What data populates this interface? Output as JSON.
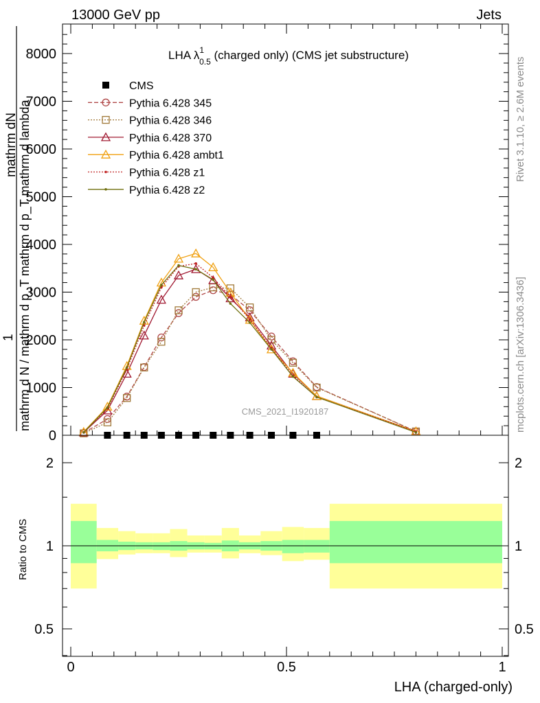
{
  "header": {
    "left": "13000 GeV pp",
    "right": "Jets"
  },
  "side_labels": {
    "rivet": "Rivet 3.1.10, ≥ 2.6M events",
    "mcplots": "mcplots.cern.ch [arXiv:1306.3436]"
  },
  "watermark": "CMS_2021_I1920187",
  "chart_data": [
    {
      "type": "line",
      "title": "LHA λ",
      "title_sup": "1",
      "title_sub": "0.5",
      "title_rest": " (charged only) (CMS jet substructure)",
      "ylabel_top": "mathrm dN",
      "ylabel_numer": "1",
      "ylabel_denom": "mathrm d N / mathrm d p_T mathrm d p_T mathrm d lambda",
      "ylim": [
        0,
        8600
      ],
      "yticks": [
        0,
        1000,
        2000,
        3000,
        4000,
        5000,
        6000,
        7000,
        8000
      ],
      "ytick_labels": [
        "0",
        "1000",
        "2000",
        "3000",
        "4000",
        "5000",
        "6000",
        "7000",
        "8000"
      ],
      "xlim": [
        -0.02,
        1.0
      ],
      "legend_position": "top-left",
      "series": [
        {
          "name": "CMS",
          "color": "#000000",
          "marker": "square",
          "line": "none",
          "x": [
            0.085,
            0.13,
            0.17,
            0.21,
            0.25,
            0.29,
            0.33,
            0.37,
            0.415,
            0.465,
            0.515,
            0.57
          ],
          "y": [
            0,
            0,
            0,
            0,
            0,
            0,
            0,
            0,
            0,
            0,
            0,
            0
          ]
        },
        {
          "name": "Pythia 6.428 345",
          "color": "#b04848",
          "marker": "circle",
          "line": "dashed",
          "x": [
            0.03,
            0.085,
            0.13,
            0.17,
            0.21,
            0.25,
            0.29,
            0.33,
            0.37,
            0.415,
            0.465,
            0.515,
            0.57,
            0.8
          ],
          "y": [
            50,
            340,
            810,
            1430,
            2050,
            2560,
            2900,
            3040,
            2950,
            2620,
            2070,
            1550,
            1010,
            80
          ]
        },
        {
          "name": "Pythia 6.428 346",
          "color": "#a07838",
          "marker": "square-open",
          "line": "dotted",
          "x": [
            0.03,
            0.085,
            0.13,
            0.17,
            0.21,
            0.25,
            0.29,
            0.33,
            0.37,
            0.415,
            0.465,
            0.515,
            0.57,
            0.8
          ],
          "y": [
            40,
            270,
            780,
            1420,
            1960,
            2620,
            3000,
            3100,
            3080,
            2680,
            2000,
            1520,
            1000,
            80
          ]
        },
        {
          "name": "Pythia 6.428 370",
          "color": "#a01830",
          "marker": "triangle-open",
          "line": "solid",
          "x": [
            0.03,
            0.085,
            0.13,
            0.17,
            0.21,
            0.25,
            0.29,
            0.33,
            0.37,
            0.415,
            0.465,
            0.515,
            0.57,
            0.8
          ],
          "y": [
            60,
            520,
            1290,
            2090,
            2840,
            3350,
            3480,
            3250,
            2870,
            2470,
            1880,
            1290,
            820,
            80
          ]
        },
        {
          "name": "Pythia 6.428 ambt1",
          "color": "#f0a010",
          "marker": "triangle-open",
          "line": "solid",
          "x": [
            0.03,
            0.085,
            0.13,
            0.17,
            0.21,
            0.25,
            0.29,
            0.33,
            0.37,
            0.415,
            0.465,
            0.515,
            0.57,
            0.8
          ],
          "y": [
            70,
            600,
            1450,
            2400,
            3200,
            3700,
            3810,
            3520,
            2990,
            2420,
            1800,
            1310,
            820,
            80
          ]
        },
        {
          "name": "Pythia 6.428 z1",
          "color": "#c02020",
          "marker": "dot",
          "line": "dotted",
          "x": [
            0.03,
            0.085,
            0.13,
            0.17,
            0.21,
            0.25,
            0.29,
            0.33,
            0.37,
            0.415,
            0.465,
            0.515,
            0.57,
            0.8
          ],
          "y": [
            60,
            560,
            1380,
            2300,
            3100,
            3540,
            3600,
            3300,
            2900,
            2430,
            1830,
            1250,
            800,
            80
          ]
        },
        {
          "name": "Pythia 6.428 z2",
          "color": "#707010",
          "marker": "dot",
          "line": "solid",
          "x": [
            0.03,
            0.085,
            0.13,
            0.17,
            0.21,
            0.25,
            0.29,
            0.33,
            0.37,
            0.415,
            0.465,
            0.515,
            0.57,
            0.8
          ],
          "y": [
            60,
            580,
            1420,
            2370,
            3150,
            3560,
            3480,
            3260,
            2760,
            2360,
            1800,
            1230,
            800,
            60
          ]
        }
      ]
    },
    {
      "type": "area",
      "ylabel": "Ratio to CMS",
      "xlabel": "LHA (charged-only)",
      "xlim": [
        -0.02,
        1.0
      ],
      "ylim": [
        0.35,
        2.3
      ],
      "yticks": [
        0.5,
        1,
        2
      ],
      "ytick_labels": [
        "0.5",
        "1",
        "2"
      ],
      "xticks": [
        0,
        0.5,
        1
      ],
      "xtick_labels": [
        "0",
        "0.5",
        "1"
      ],
      "reference": 1,
      "bands": {
        "inner_color": "#99ff99",
        "outer_color": "#ffff99",
        "bins": [
          {
            "x0": 0.0,
            "x1": 0.06,
            "in_lo": 0.865,
            "in_hi": 1.23,
            "out_lo": 0.7,
            "out_hi": 1.42
          },
          {
            "x0": 0.06,
            "x1": 0.11,
            "in_lo": 0.955,
            "in_hi": 1.05,
            "out_lo": 0.895,
            "out_hi": 1.16
          },
          {
            "x0": 0.11,
            "x1": 0.15,
            "in_lo": 0.965,
            "in_hi": 1.035,
            "out_lo": 0.93,
            "out_hi": 1.13
          },
          {
            "x0": 0.15,
            "x1": 0.19,
            "in_lo": 0.97,
            "in_hi": 1.03,
            "out_lo": 0.94,
            "out_hi": 1.11
          },
          {
            "x0": 0.19,
            "x1": 0.23,
            "in_lo": 0.965,
            "in_hi": 1.03,
            "out_lo": 0.94,
            "out_hi": 1.11
          },
          {
            "x0": 0.23,
            "x1": 0.27,
            "in_lo": 0.96,
            "in_hi": 1.04,
            "out_lo": 0.91,
            "out_hi": 1.15
          },
          {
            "x0": 0.27,
            "x1": 0.31,
            "in_lo": 0.97,
            "in_hi": 1.03,
            "out_lo": 0.945,
            "out_hi": 1.09
          },
          {
            "x0": 0.31,
            "x1": 0.35,
            "in_lo": 0.97,
            "in_hi": 1.025,
            "out_lo": 0.945,
            "out_hi": 1.09
          },
          {
            "x0": 0.35,
            "x1": 0.39,
            "in_lo": 0.955,
            "in_hi": 1.045,
            "out_lo": 0.9,
            "out_hi": 1.16
          },
          {
            "x0": 0.39,
            "x1": 0.44,
            "in_lo": 0.97,
            "in_hi": 1.03,
            "out_lo": 0.94,
            "out_hi": 1.09
          },
          {
            "x0": 0.44,
            "x1": 0.49,
            "in_lo": 0.96,
            "in_hi": 1.04,
            "out_lo": 0.925,
            "out_hi": 1.13
          },
          {
            "x0": 0.49,
            "x1": 0.54,
            "in_lo": 0.94,
            "in_hi": 1.05,
            "out_lo": 0.88,
            "out_hi": 1.17
          },
          {
            "x0": 0.54,
            "x1": 0.6,
            "in_lo": 0.945,
            "in_hi": 1.05,
            "out_lo": 0.89,
            "out_hi": 1.16
          },
          {
            "x0": 0.6,
            "x1": 1.0,
            "in_lo": 0.865,
            "in_hi": 1.23,
            "out_lo": 0.7,
            "out_hi": 1.42
          }
        ]
      }
    }
  ]
}
